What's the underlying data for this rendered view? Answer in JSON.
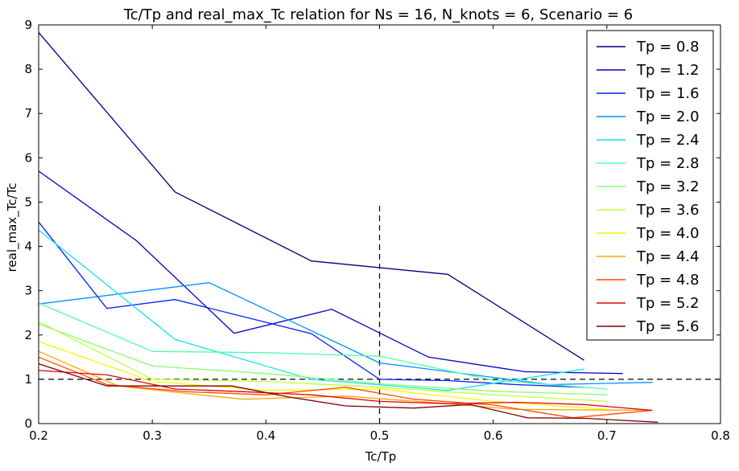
{
  "chart_data": {
    "type": "line",
    "title": "Tc/Tp and real_max_Tc relation for Ns = 16, N_knots = 6, Scenario = 6",
    "xlabel": "Tc/Tp",
    "ylabel": "real_max_Tc/Tc",
    "xlim": [
      0.2,
      0.8
    ],
    "ylim": [
      0,
      9
    ],
    "xticks": [
      0.2,
      0.3,
      0.4,
      0.5,
      0.6,
      0.7,
      0.8
    ],
    "xtick_labels": [
      "0.2",
      "0.3",
      "0.4",
      "0.5",
      "0.6",
      "0.7",
      "0.8"
    ],
    "yticks": [
      0,
      1,
      2,
      3,
      4,
      5,
      6,
      7,
      8,
      9
    ],
    "ytick_labels": [
      "0",
      "1",
      "2",
      "3",
      "4",
      "5",
      "6",
      "7",
      "8",
      "9"
    ],
    "grid": false,
    "legend_position": "top-right",
    "reference_lines": [
      {
        "orientation": "horizontal",
        "y": 1,
        "x_range": [
          0.2,
          0.8
        ],
        "style": "dashed",
        "color": "#000000"
      },
      {
        "orientation": "vertical",
        "x": 0.5,
        "y_range": [
          0,
          5
        ],
        "style": "dashed",
        "color": "#000000"
      }
    ],
    "series": [
      {
        "name": "Tp = 0.8",
        "color": "#00007f",
        "x": [
          0.2,
          0.32,
          0.44,
          0.56,
          0.68
        ],
        "y": [
          8.83,
          5.23,
          3.67,
          3.37,
          1.43
        ]
      },
      {
        "name": "Tp = 1.2",
        "color": "#0000c8",
        "x": [
          0.2,
          0.286,
          0.372,
          0.458,
          0.543,
          0.628,
          0.714
        ],
        "y": [
          5.7,
          4.13,
          2.04,
          2.58,
          1.5,
          1.17,
          1.13
        ]
      },
      {
        "name": "Tp = 1.6",
        "color": "#0020ff",
        "x": [
          0.2,
          0.26,
          0.32,
          0.44,
          0.5,
          0.56,
          0.62,
          0.68
        ],
        "y": [
          4.55,
          2.6,
          2.8,
          2.03,
          1.0,
          0.97,
          0.88,
          0.82
        ]
      },
      {
        "name": "Tp = 2.0",
        "color": "#0090ff",
        "x": [
          0.2,
          0.35,
          0.5,
          0.65,
          0.74
        ],
        "y": [
          2.7,
          3.18,
          1.37,
          0.88,
          0.93
        ]
      },
      {
        "name": "Tp = 2.4",
        "color": "#10e4ea",
        "x": [
          0.2,
          0.32,
          0.44,
          0.56,
          0.68
        ],
        "y": [
          4.37,
          1.9,
          1.0,
          0.75,
          1.23
        ]
      },
      {
        "name": "Tp = 2.8",
        "color": "#4dffaa",
        "x": [
          0.2,
          0.3,
          0.4,
          0.5,
          0.6,
          0.7
        ],
        "y": [
          2.72,
          1.63,
          1.6,
          1.52,
          0.98,
          0.78
        ]
      },
      {
        "name": "Tp = 3.2",
        "color": "#86ff70",
        "x": [
          0.2,
          0.3,
          0.4,
          0.5,
          0.6,
          0.7
        ],
        "y": [
          2.25,
          1.3,
          1.13,
          0.9,
          0.73,
          0.65
        ]
      },
      {
        "name": "Tp = 3.6",
        "color": "#c1ff36",
        "x": [
          0.2,
          0.3,
          0.4,
          0.5,
          0.6,
          0.7
        ],
        "y": [
          2.3,
          1.0,
          0.95,
          0.82,
          0.65,
          0.5
        ]
      },
      {
        "name": "Tp = 4.0",
        "color": "#f4f802",
        "x": [
          0.2,
          0.3,
          0.4,
          0.5,
          0.6,
          0.7
        ],
        "y": [
          1.85,
          0.95,
          0.75,
          0.78,
          0.5,
          0.32
        ]
      },
      {
        "name": "Tp = 4.4",
        "color": "#ffa600",
        "x": [
          0.2,
          0.27,
          0.33,
          0.38,
          0.47,
          0.56,
          0.62,
          0.74
        ],
        "y": [
          1.63,
          0.85,
          0.68,
          0.55,
          0.62,
          0.45,
          0.32,
          0.3
        ]
      },
      {
        "name": "Tp = 4.8",
        "color": "#ff4800",
        "x": [
          0.2,
          0.26,
          0.33,
          0.4,
          0.47,
          0.53,
          0.6,
          0.67,
          0.74
        ],
        "y": [
          1.5,
          0.88,
          0.72,
          0.65,
          0.82,
          0.55,
          0.42,
          0.13,
          0.3
        ]
      },
      {
        "name": "Tp = 5.2",
        "color": "#e30000",
        "x": [
          0.2,
          0.26,
          0.32,
          0.38,
          0.44,
          0.5,
          0.56,
          0.62,
          0.68,
          0.74
        ],
        "y": [
          1.2,
          1.1,
          0.78,
          0.72,
          0.65,
          0.5,
          0.45,
          0.48,
          0.43,
          0.3
        ]
      },
      {
        "name": "Tp = 5.6",
        "color": "#7f0000",
        "x": [
          0.2,
          0.26,
          0.37,
          0.42,
          0.47,
          0.53,
          0.58,
          0.63,
          0.68,
          0.745
        ],
        "y": [
          1.35,
          0.85,
          0.85,
          0.6,
          0.4,
          0.35,
          0.43,
          0.13,
          0.12,
          0.03
        ]
      }
    ]
  }
}
